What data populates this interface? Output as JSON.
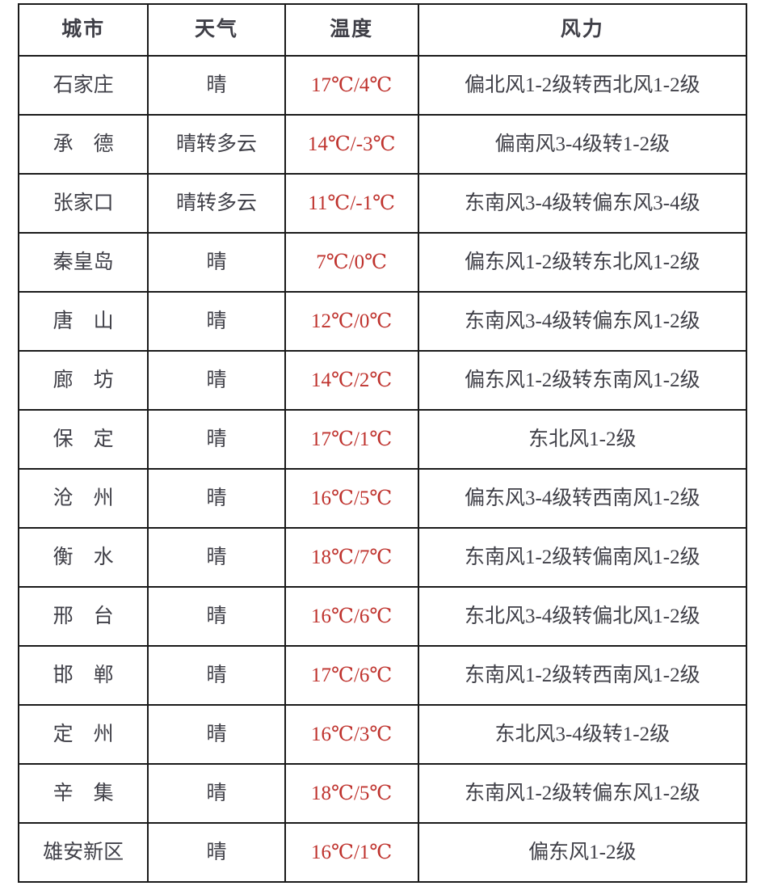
{
  "colors": {
    "temperature_text": "#bf332e",
    "body_text": "#3f3f47",
    "grid_border": "#1a1a1a",
    "background": "#ffffff"
  },
  "table": {
    "headers": {
      "city": "城市",
      "weather": "天气",
      "temp": "温度",
      "wind": "风力"
    },
    "rows": [
      {
        "city": "石家庄",
        "weather": "晴",
        "temp": "17℃/4℃",
        "wind": "偏北风1-2级转西北风1-2级"
      },
      {
        "city": "承　德",
        "weather": "晴转多云",
        "temp": "14℃/-3℃",
        "wind": "偏南风3-4级转1-2级"
      },
      {
        "city": "张家口",
        "weather": "晴转多云",
        "temp": "11℃/-1℃",
        "wind": "东南风3-4级转偏东风3-4级"
      },
      {
        "city": "秦皇岛",
        "weather": "晴",
        "temp": "7℃/0℃",
        "wind": "偏东风1-2级转东北风1-2级"
      },
      {
        "city": "唐　山",
        "weather": "晴",
        "temp": "12℃/0℃",
        "wind": "东南风3-4级转偏东风1-2级"
      },
      {
        "city": "廊　坊",
        "weather": "晴",
        "temp": "14℃/2℃",
        "wind": "偏东风1-2级转东南风1-2级"
      },
      {
        "city": "保　定",
        "weather": "晴",
        "temp": "17℃/1℃",
        "wind": "东北风1-2级"
      },
      {
        "city": "沧　州",
        "weather": "晴",
        "temp": "16℃/5℃",
        "wind": "偏东风3-4级转西南风1-2级"
      },
      {
        "city": "衡　水",
        "weather": "晴",
        "temp": "18℃/7℃",
        "wind": "东南风1-2级转偏南风1-2级"
      },
      {
        "city": "邢　台",
        "weather": "晴",
        "temp": "16℃/6℃",
        "wind": "东北风3-4级转偏北风1-2级"
      },
      {
        "city": "邯　郸",
        "weather": "晴",
        "temp": "17℃/6℃",
        "wind": "东南风1-2级转西南风1-2级"
      },
      {
        "city": "定　州",
        "weather": "晴",
        "temp": "16℃/3℃",
        "wind": "东北风3-4级转1-2级"
      },
      {
        "city": "辛　集",
        "weather": "晴",
        "temp": "18℃/5℃",
        "wind": "东南风1-2级转偏东风1-2级"
      },
      {
        "city": "雄安新区",
        "weather": "晴",
        "temp": "16℃/1℃",
        "wind": "偏东风1-2级"
      }
    ]
  },
  "chart_data": {
    "type": "table",
    "columns": [
      "城市",
      "天气",
      "温度",
      "风力"
    ],
    "rows": [
      [
        "石家庄",
        "晴",
        "17℃/4℃",
        "偏北风1-2级转西北风1-2级"
      ],
      [
        "承德",
        "晴转多云",
        "14℃/-3℃",
        "偏南风3-4级转1-2级"
      ],
      [
        "张家口",
        "晴转多云",
        "11℃/-1℃",
        "东南风3-4级转偏东风3-4级"
      ],
      [
        "秦皇岛",
        "晴",
        "7℃/0℃",
        "偏东风1-2级转东北风1-2级"
      ],
      [
        "唐山",
        "晴",
        "12℃/0℃",
        "东南风3-4级转偏东风1-2级"
      ],
      [
        "廊坊",
        "晴",
        "14℃/2℃",
        "偏东风1-2级转东南风1-2级"
      ],
      [
        "保定",
        "晴",
        "17℃/1℃",
        "东北风1-2级"
      ],
      [
        "沧州",
        "晴",
        "16℃/5℃",
        "偏东风3-4级转西南风1-2级"
      ],
      [
        "衡水",
        "晴",
        "18℃/7℃",
        "东南风1-2级转偏南风1-2级"
      ],
      [
        "邢台",
        "晴",
        "16℃/6℃",
        "东北风3-4级转偏北风1-2级"
      ],
      [
        "邯郸",
        "晴",
        "17℃/6℃",
        "东南风1-2级转西南风1-2级"
      ],
      [
        "定州",
        "晴",
        "16℃/3℃",
        "东北风3-4级转1-2级"
      ],
      [
        "辛集",
        "晴",
        "18℃/5℃",
        "东南风1-2级转偏东风1-2级"
      ],
      [
        "雄安新区",
        "晴",
        "16℃/1℃",
        "偏东风1-2级"
      ]
    ],
    "temp_high": [
      17,
      14,
      11,
      7,
      12,
      14,
      17,
      16,
      18,
      16,
      17,
      16,
      18,
      16
    ],
    "temp_low": [
      4,
      -3,
      -1,
      0,
      0,
      2,
      1,
      5,
      7,
      6,
      6,
      3,
      5,
      1
    ]
  }
}
